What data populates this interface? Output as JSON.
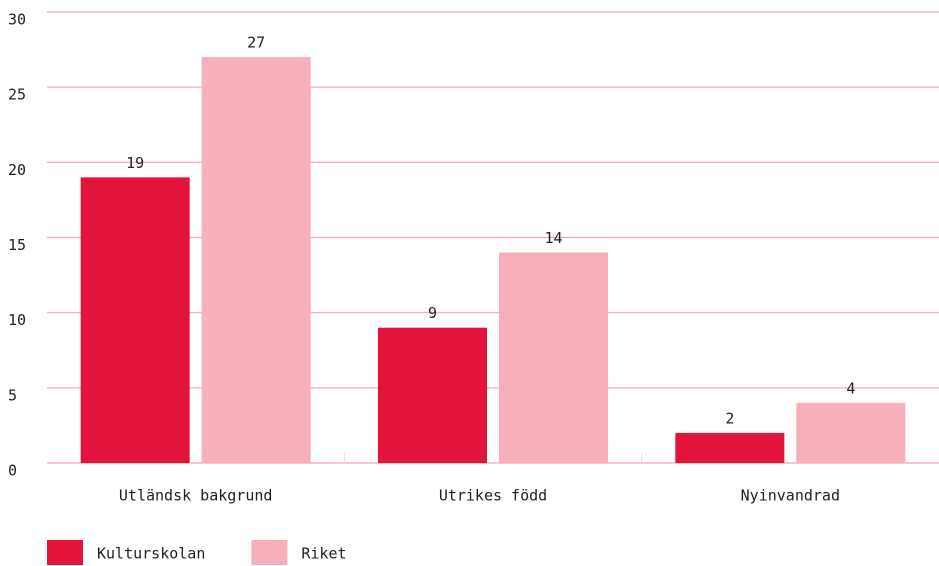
{
  "chart_data": {
    "type": "bar",
    "categories": [
      "Utländsk bakgrund",
      "Utrikes född",
      "Nyinvandrad"
    ],
    "series": [
      {
        "name": "Kulturskolan",
        "color": "#e3143c",
        "values": [
          19,
          9,
          2
        ]
      },
      {
        "name": "Riket",
        "color": "#f7b0bb",
        "values": [
          27,
          14,
          4
        ]
      }
    ],
    "ylim": [
      0,
      30
    ],
    "yticks": [
      0,
      5,
      10,
      15,
      20,
      25,
      30
    ],
    "grid": true,
    "legend": "bottom"
  }
}
